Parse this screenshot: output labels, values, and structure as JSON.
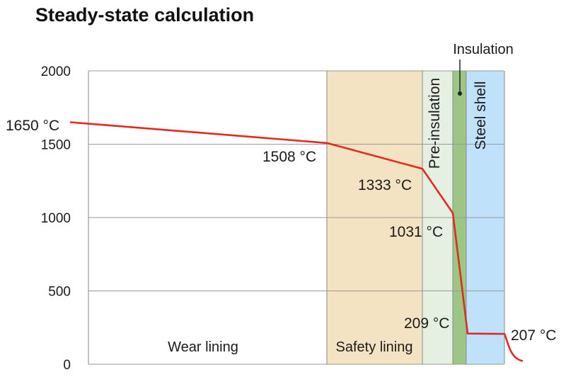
{
  "chart_data": {
    "type": "line",
    "title": "Steady-state calculation",
    "xlabel": "",
    "ylabel": "",
    "ylim": [
      0,
      2000
    ],
    "y_ticks": [
      0,
      500,
      1000,
      1500,
      2000
    ],
    "grid": true,
    "layers": [
      {
        "name": "Wear lining",
        "color": "#ffffff"
      },
      {
        "name": "Safety lining",
        "color": "#f3e3c3"
      },
      {
        "name": "Pre-insulation",
        "color": "#e6f0e2"
      },
      {
        "name": "Insulation",
        "color": "#9cc685"
      },
      {
        "name": "Steel shell",
        "color": "#bfe2fa"
      }
    ],
    "series": [
      {
        "color": "#e02b20",
        "points": [
          {
            "label": "1650 °C",
            "value": 1650
          },
          {
            "label": "1508 °C",
            "value": 1508
          },
          {
            "label": "1333 °C",
            "value": 1333
          },
          {
            "label": "1031 °C",
            "value": 1031
          },
          {
            "label": "209 °C",
            "value": 209
          },
          {
            "label": "207 °C",
            "value": 207
          }
        ]
      }
    ]
  }
}
